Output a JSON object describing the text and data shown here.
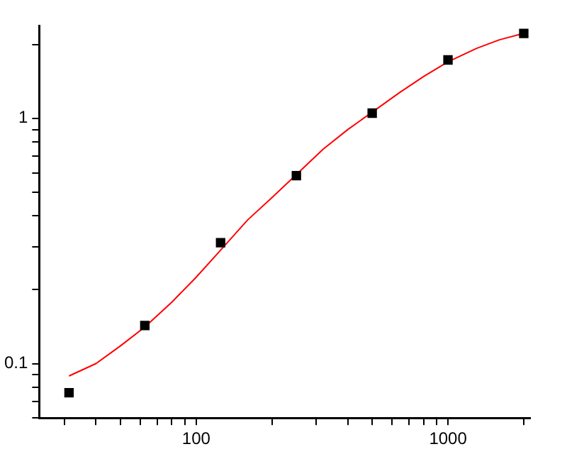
{
  "chart_data": {
    "type": "scatter",
    "log": "xy",
    "grid": false,
    "legend": false,
    "xlim": [
      23.8,
      2120
    ],
    "ylim": [
      0.06,
      2.39
    ],
    "xticks": [
      {
        "value": 30,
        "label": null
      },
      {
        "value": 40,
        "label": null
      },
      {
        "value": 50,
        "label": null
      },
      {
        "value": 60,
        "label": null
      },
      {
        "value": 70,
        "label": null
      },
      {
        "value": 80,
        "label": null
      },
      {
        "value": 90,
        "label": null
      },
      100,
      {
        "value": 200,
        "label": null
      },
      {
        "value": 300,
        "label": null
      },
      {
        "value": 400,
        "label": null
      },
      {
        "value": 500,
        "label": null
      },
      {
        "value": 600,
        "label": null
      },
      {
        "value": 700,
        "label": null
      },
      {
        "value": 800,
        "label": null
      },
      {
        "value": 900,
        "label": null
      },
      1000,
      {
        "value": 2000,
        "label": null
      }
    ],
    "yticks": [
      {
        "value": 0.06,
        "label": null
      },
      {
        "value": 0.07,
        "label": null
      },
      {
        "value": 0.08,
        "label": null
      },
      {
        "value": 0.09,
        "label": null
      },
      0.1,
      {
        "value": 0.2,
        "label": null
      },
      {
        "value": 0.3,
        "label": null
      },
      {
        "value": 0.4,
        "label": null
      },
      {
        "value": 0.5,
        "label": null
      },
      {
        "value": 0.6,
        "label": null
      },
      {
        "value": 0.7,
        "label": null
      },
      {
        "value": 0.8,
        "label": null
      },
      {
        "value": 0.9,
        "label": null
      },
      1,
      {
        "value": 2,
        "label": null
      }
    ],
    "series": [
      {
        "type": "line",
        "color": "#ff0000",
        "marker": "none",
        "line_style": "solid",
        "x": [
          31.25,
          40,
          50,
          62.5,
          80,
          100,
          125,
          160,
          200,
          250,
          320,
          400,
          500,
          640,
          800,
          1000,
          1300,
          1600,
          2000
        ],
        "values": [
          0.089,
          0.1,
          0.118,
          0.141,
          0.178,
          0.225,
          0.29,
          0.385,
          0.475,
          0.59,
          0.75,
          0.9,
          1.06,
          1.27,
          1.48,
          1.7,
          1.93,
          2.09,
          2.22
        ]
      },
      {
        "type": "scatter",
        "color": "#000000",
        "marker": "square",
        "x": [
          31.25,
          62.5,
          125,
          250,
          500,
          1000,
          2000
        ],
        "values": [
          0.076,
          0.143,
          0.311,
          0.584,
          1.05,
          1.73,
          2.22
        ]
      }
    ]
  }
}
